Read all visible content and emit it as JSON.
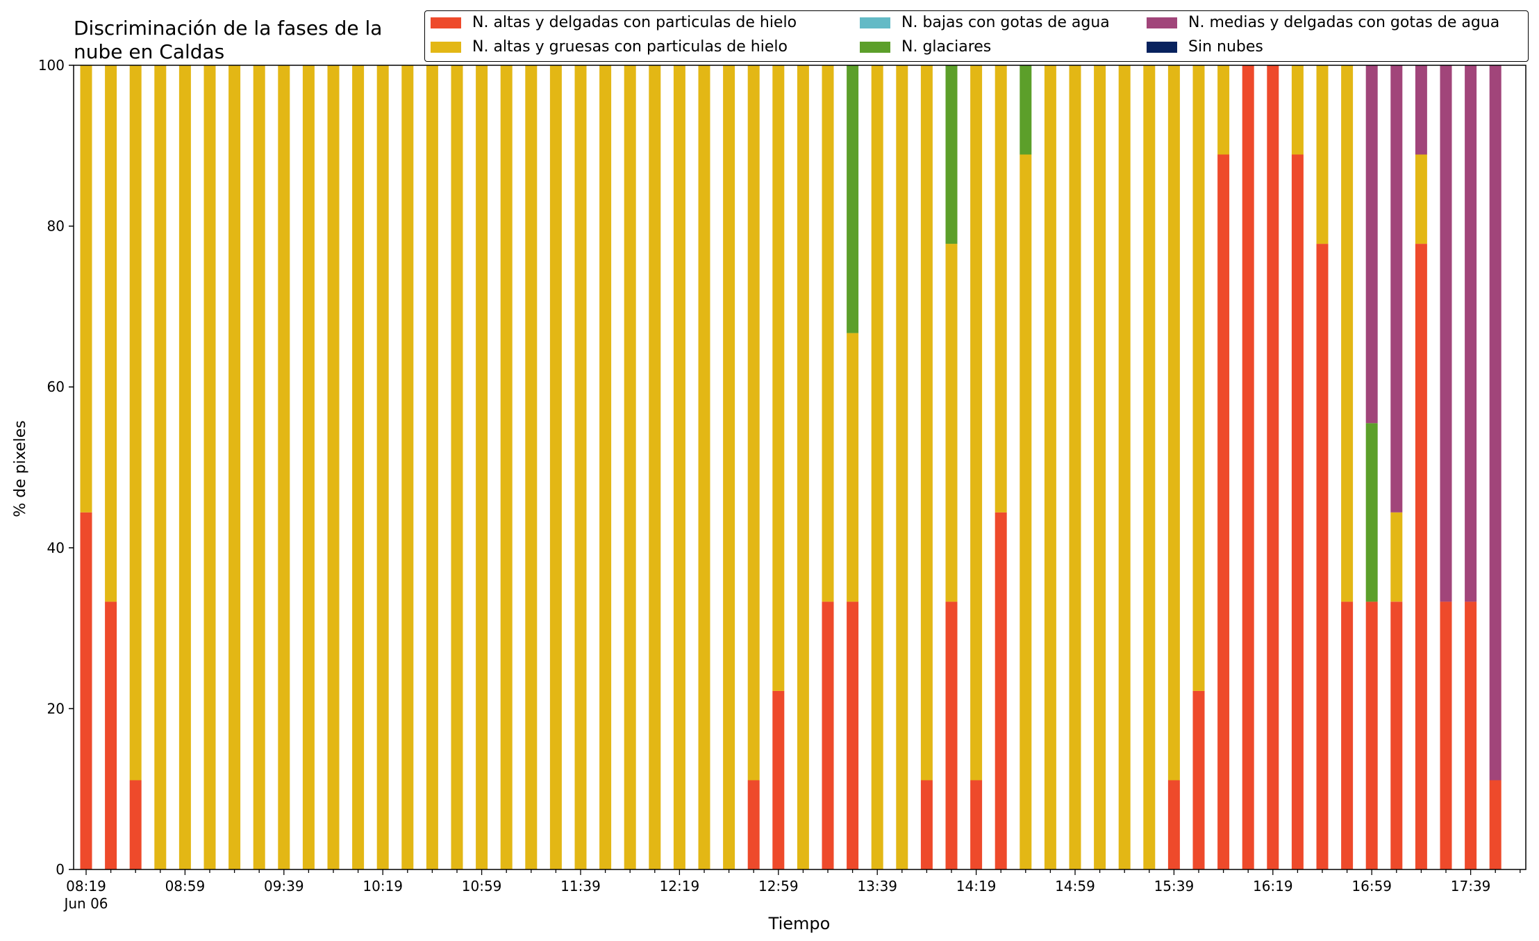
{
  "chart_data": {
    "type": "bar",
    "stacked": true,
    "title": [
      "Discriminación de la fases de la",
      "nube en Caldas"
    ],
    "xlabel": "Tiempo",
    "ylabel": "% de pixeles",
    "ylim": [
      0,
      100
    ],
    "yticks": [
      "0",
      "20",
      "40",
      "60",
      "80",
      "100"
    ],
    "xtick_labels": [
      "08:19",
      "08:59",
      "09:39",
      "10:19",
      "10:59",
      "11:39",
      "12:19",
      "12:59",
      "13:39",
      "14:19",
      "14:59",
      "15:39",
      "16:19",
      "16:59",
      "17:39"
    ],
    "xtick_sublabel": "Jun 06",
    "categories": [
      "08:19",
      "08:29",
      "08:39",
      "08:49",
      "08:59",
      "09:09",
      "09:19",
      "09:29",
      "09:39",
      "09:49",
      "09:59",
      "10:09",
      "10:19",
      "10:29",
      "10:39",
      "10:49",
      "10:59",
      "11:09",
      "11:19",
      "11:29",
      "11:39",
      "11:49",
      "11:59",
      "12:09",
      "12:19",
      "12:29",
      "12:39",
      "12:49",
      "12:59",
      "13:09",
      "13:19",
      "13:29",
      "13:39",
      "13:49",
      "13:59",
      "14:09",
      "14:19",
      "14:29",
      "14:39",
      "14:49",
      "14:59",
      "15:09",
      "15:19",
      "15:29",
      "15:39",
      "15:49",
      "15:59",
      "16:09",
      "16:19",
      "16:29",
      "16:39",
      "16:49",
      "16:59",
      "17:09",
      "17:19",
      "17:29",
      "17:39",
      "17:49"
    ],
    "legend_position": "top-right",
    "series": [
      {
        "name": "N. altas y delgadas con particulas de hielo",
        "color": "#EE4A2B",
        "values": [
          44.4,
          33.3,
          11.1,
          0,
          0,
          0,
          0,
          0,
          0,
          0,
          0,
          0,
          0,
          0,
          0,
          0,
          0,
          0,
          0,
          0,
          0,
          0,
          0,
          0,
          0,
          0,
          0,
          11.1,
          22.2,
          0,
          33.3,
          33.3,
          0,
          0,
          11.1,
          33.3,
          11.1,
          44.4,
          0,
          0,
          0,
          0,
          0,
          0,
          11.1,
          22.2,
          88.9,
          100,
          100,
          88.9,
          77.8,
          33.3,
          33.3,
          33.3,
          77.8,
          33.3,
          33.3,
          11.1
        ]
      },
      {
        "name": "N. altas y gruesas con particulas de hielo",
        "color": "#E3B715",
        "values": [
          55.6,
          66.7,
          88.9,
          100,
          100,
          100,
          100,
          100,
          100,
          100,
          100,
          100,
          100,
          100,
          100,
          100,
          100,
          100,
          100,
          100,
          100,
          100,
          100,
          100,
          100,
          100,
          100,
          88.9,
          77.8,
          100,
          66.7,
          33.4,
          100,
          100,
          88.9,
          44.5,
          88.9,
          55.6,
          88.9,
          100,
          100,
          100,
          100,
          100,
          88.9,
          77.8,
          11.1,
          0,
          0,
          11.1,
          22.2,
          66.7,
          0,
          11.1,
          11.1,
          0,
          0,
          0
        ]
      },
      {
        "name": "N. bajas con gotas de agua",
        "color": "#63BAC6",
        "values": [
          0,
          0,
          0,
          0,
          0,
          0,
          0,
          0,
          0,
          0,
          0,
          0,
          0,
          0,
          0,
          0,
          0,
          0,
          0,
          0,
          0,
          0,
          0,
          0,
          0,
          0,
          0,
          0,
          0,
          0,
          0,
          0,
          0,
          0,
          0,
          0,
          0,
          0,
          0,
          0,
          0,
          0,
          0,
          0,
          0,
          0,
          0,
          0,
          0,
          0,
          0,
          0,
          0,
          0,
          0,
          0,
          0,
          0
        ]
      },
      {
        "name": "N. glaciares",
        "color": "#5C9F2A",
        "values": [
          0,
          0,
          0,
          0,
          0,
          0,
          0,
          0,
          0,
          0,
          0,
          0,
          0,
          0,
          0,
          0,
          0,
          0,
          0,
          0,
          0,
          0,
          0,
          0,
          0,
          0,
          0,
          0,
          0,
          0,
          0,
          33.3,
          0,
          0,
          0,
          22.2,
          0,
          0,
          11.1,
          0,
          0,
          0,
          0,
          0,
          0,
          0,
          0,
          0,
          0,
          0,
          0,
          0,
          22.2,
          0,
          0,
          0,
          0,
          0
        ]
      },
      {
        "name": "N. medias y delgadas con gotas de agua",
        "color": "#A1457A",
        "values": [
          0,
          0,
          0,
          0,
          0,
          0,
          0,
          0,
          0,
          0,
          0,
          0,
          0,
          0,
          0,
          0,
          0,
          0,
          0,
          0,
          0,
          0,
          0,
          0,
          0,
          0,
          0,
          0,
          0,
          0,
          0,
          0,
          0,
          0,
          0,
          0,
          0,
          0,
          0,
          0,
          0,
          0,
          0,
          0,
          0,
          0,
          0,
          0,
          0,
          0,
          0,
          0,
          44.5,
          55.6,
          11.1,
          66.7,
          66.7,
          88.9
        ]
      },
      {
        "name": "Sin nubes",
        "color": "#08225E",
        "values": [
          0,
          0,
          0,
          0,
          0,
          0,
          0,
          0,
          0,
          0,
          0,
          0,
          0,
          0,
          0,
          0,
          0,
          0,
          0,
          0,
          0,
          0,
          0,
          0,
          0,
          0,
          0,
          0,
          0,
          0,
          0,
          0,
          0,
          0,
          0,
          0,
          0,
          0,
          0,
          0,
          0,
          0,
          0,
          0,
          0,
          0,
          0,
          0,
          0,
          0,
          0,
          0,
          0,
          0,
          0,
          0,
          0,
          0
        ]
      }
    ]
  }
}
